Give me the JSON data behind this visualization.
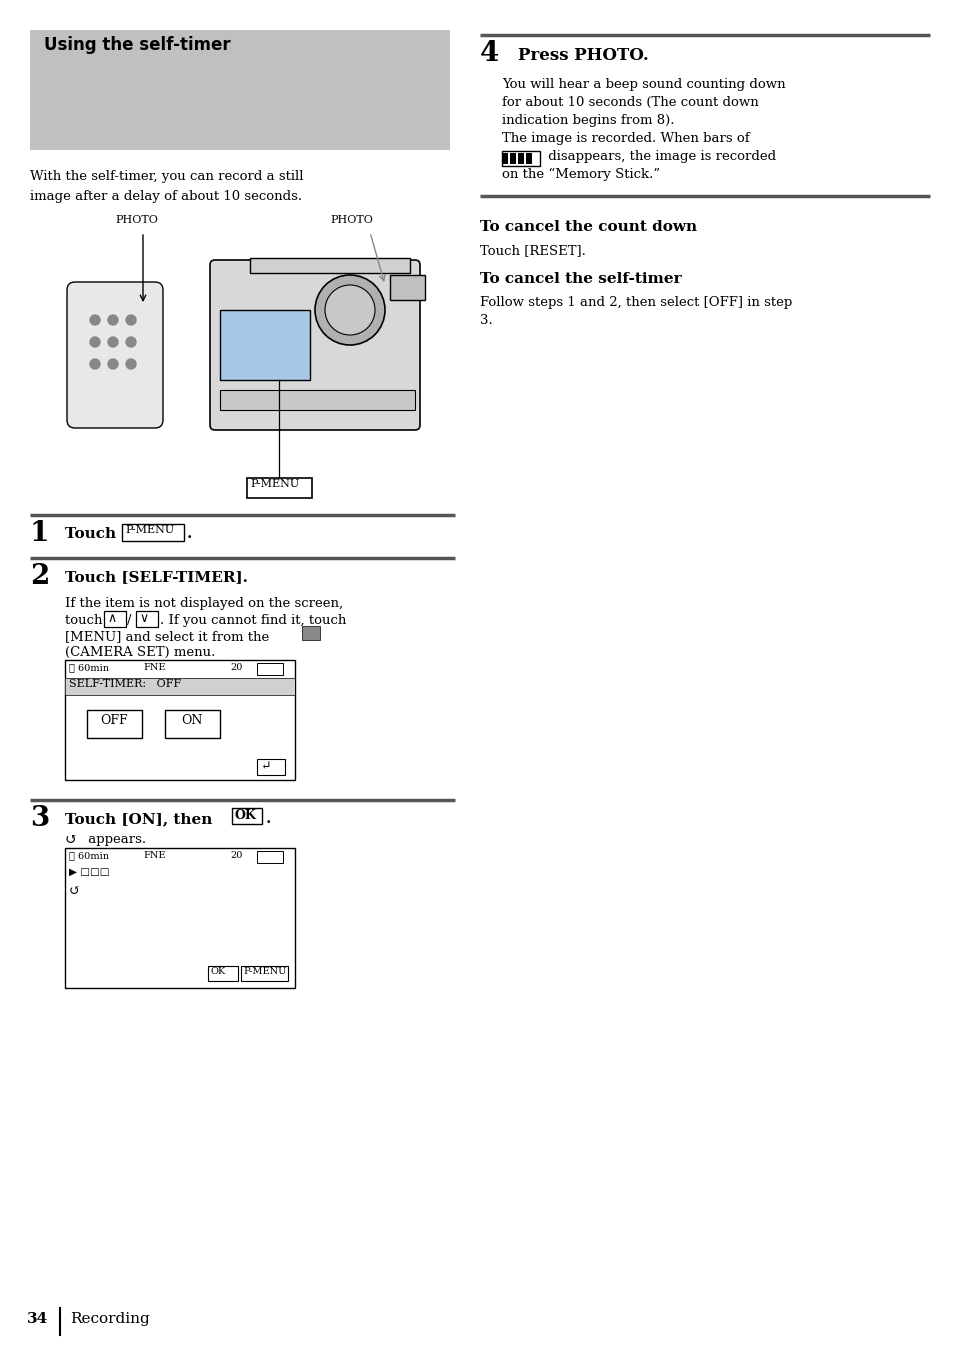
{
  "bg_color": "#ffffff",
  "page_width": 9.54,
  "page_height": 13.52,
  "title_text": "Using the self-timer",
  "intro_line1": "With the self-timer, you can record a still",
  "intro_line2": "image after a delay of about 10 seconds.",
  "step1_text": "Touch ",
  "step1_pmenu": "P-MENU",
  "step2_head": "Touch [SELF-TIMER].",
  "step2_l1": "If the item is not displayed on the screen,",
  "step2_l2": "touch ",
  "step2_l2b": ". If you cannot find it, touch",
  "step2_l3": "[MENU] and select it from the",
  "step2_l4": "(CAMERA SET) menu.",
  "step3_head": "Touch [ON], then ",
  "step3_ok": "OK",
  "step3_body": " appears.",
  "step4_head": "Press PHOTO.",
  "step4_l1": "You will hear a beep sound counting down",
  "step4_l2": "for about 10 seconds (The count down",
  "step4_l3": "indication begins from 8).",
  "step4_l4": "The image is recorded. When bars of",
  "step4_l5": " disappears, the image is recorded",
  "step4_l6": "on the “Memory Stick.”",
  "cancel1_head": "To cancel the count down",
  "cancel1_body": "Touch [RESET].",
  "cancel2_head": "To cancel the self-timer",
  "cancel2_l1": "Follow steps 1 and 2, then select [OFF] in step",
  "cancel2_l2": "3.",
  "footer_num": "34",
  "footer_label": "Recording",
  "gray_color": "#c0c0c0",
  "divider_color": "#666666",
  "screen_border": "#000000",
  "screen_header_bg": "#d0d0d0"
}
